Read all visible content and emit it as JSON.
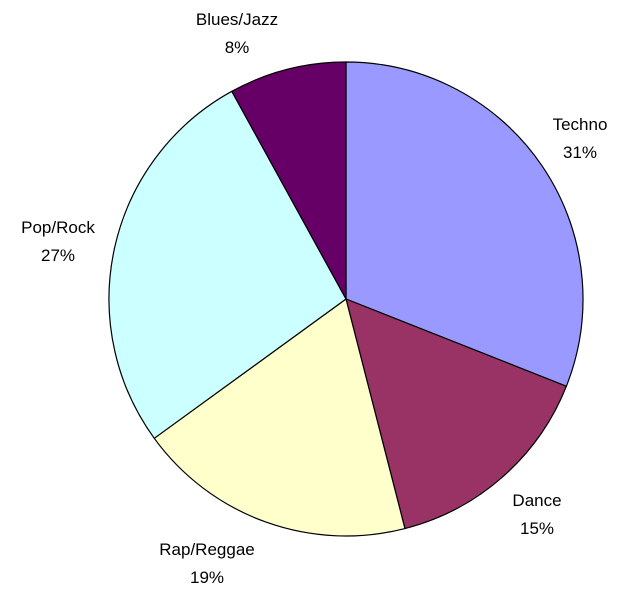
{
  "chart_data": {
    "type": "pie",
    "categories": [
      "Techno",
      "Dance",
      "Rap/Reggae",
      "Pop/Rock",
      "Blues/Jazz"
    ],
    "values": [
      31,
      15,
      19,
      27,
      8
    ],
    "percent_labels": [
      "31%",
      "15%",
      "19%",
      "27%",
      "8%"
    ],
    "colors": [
      "#9999ff",
      "#993366",
      "#ffffcc",
      "#ccffff",
      "#660066"
    ],
    "start_angle_deg": 0,
    "direction": "clockwise",
    "legend": "none",
    "data_labels": "category-and-percent-outside"
  }
}
